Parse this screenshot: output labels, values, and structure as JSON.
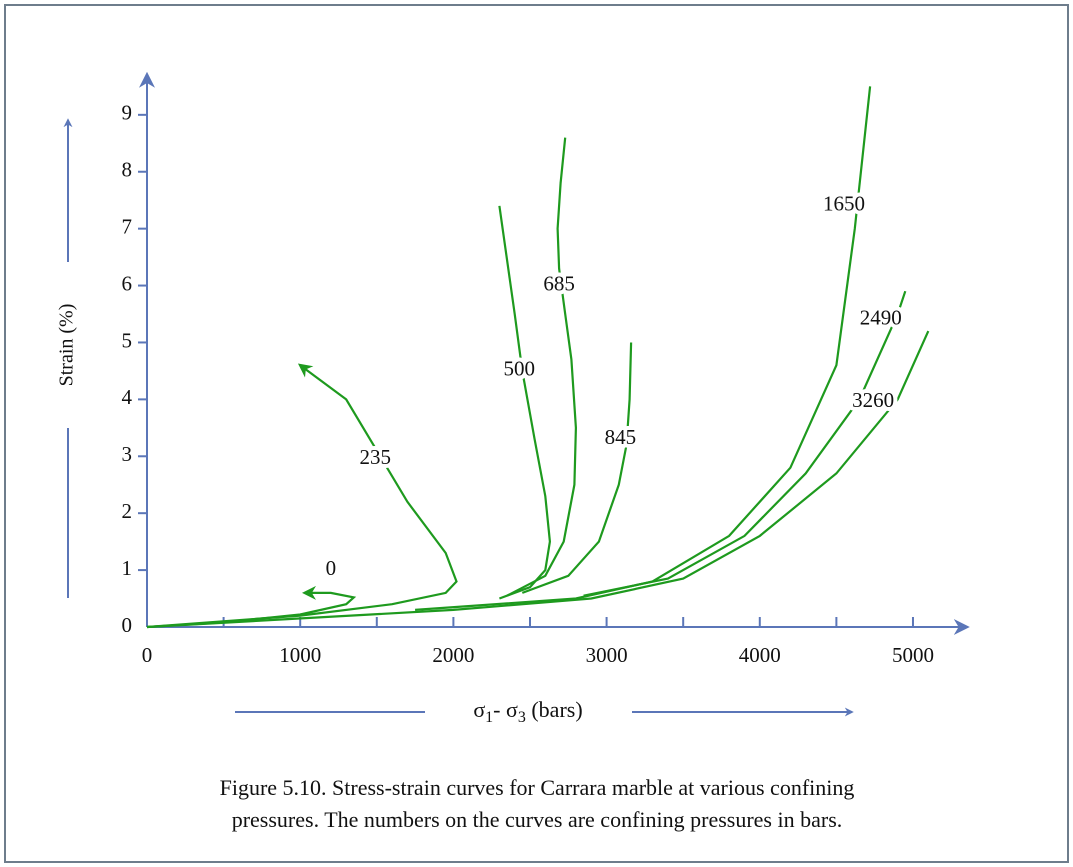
{
  "chart_data": {
    "type": "line",
    "y_label": "Strain (%)",
    "x_label_parts": [
      "σ",
      "1",
      "- σ",
      "3",
      " (bars)"
    ],
    "caption": [
      "Figure 5.10. Stress-strain curves for Carrara marble at various confining",
      "pressures. The numbers on the curves are confining pressures in bars."
    ],
    "xlim": [
      0,
      5350
    ],
    "ylim": [
      0,
      9.7
    ],
    "xticks": [
      0,
      1000,
      2000,
      3000,
      4000,
      5000
    ],
    "xminorticks": [
      500,
      1500,
      2500,
      3500,
      4500
    ],
    "yticks": [
      0,
      1,
      2,
      3,
      4,
      5,
      6,
      7,
      8,
      9
    ],
    "color": "#1e9a1e",
    "series": [
      {
        "name": "0",
        "x": [
          0,
          500,
          1000,
          1300,
          1350,
          1200,
          1030
        ],
        "values": [
          0,
          0.08,
          0.22,
          0.4,
          0.52,
          0.6,
          0.6
        ]
      },
      {
        "name": "235",
        "x": [
          0,
          1000,
          1600,
          1950,
          2020,
          1950,
          1700,
          1500,
          1300,
          1100,
          1000
        ],
        "values": [
          0,
          0.2,
          0.4,
          0.6,
          0.8,
          1.3,
          2.2,
          3.1,
          4.0,
          4.4,
          4.6
        ]
      },
      {
        "name": "500",
        "x": [
          2300,
          2500,
          2600,
          2630,
          2600,
          2530,
          2450,
          2400,
          2300
        ],
        "values": [
          0.5,
          0.7,
          1.0,
          1.5,
          2.3,
          3.3,
          4.5,
          5.5,
          7.4
        ]
      },
      {
        "name": "685",
        "x": [
          2350,
          2600,
          2720,
          2790,
          2800,
          2770,
          2730,
          2690,
          2680,
          2700,
          2730
        ],
        "values": [
          0.55,
          0.9,
          1.5,
          2.5,
          3.5,
          4.7,
          5.5,
          6.3,
          7.0,
          7.8,
          8.6
        ]
      },
      {
        "name": "845",
        "x": [
          2450,
          2750,
          2950,
          3080,
          3130,
          3150,
          3160
        ],
        "values": [
          0.6,
          0.9,
          1.5,
          2.5,
          3.2,
          4.0,
          5.0
        ]
      },
      {
        "name": "1650",
        "x": [
          1750,
          2800,
          3300,
          3800,
          4200,
          4500,
          4620,
          4720
        ],
        "values": [
          0.3,
          0.5,
          0.8,
          1.6,
          2.8,
          4.6,
          7.0,
          9.5
        ]
      },
      {
        "name": "2490",
        "x": [
          2850,
          3400,
          3900,
          4300,
          4650,
          4900,
          4950
        ],
        "values": [
          0.55,
          0.85,
          1.6,
          2.7,
          4.0,
          5.5,
          5.9
        ]
      },
      {
        "name": "3260",
        "x": [
          0,
          2000,
          2900,
          3500,
          4000,
          4500,
          4900,
          5100
        ],
        "values": [
          0,
          0.3,
          0.5,
          0.85,
          1.6,
          2.7,
          4.0,
          5.2
        ]
      }
    ]
  }
}
